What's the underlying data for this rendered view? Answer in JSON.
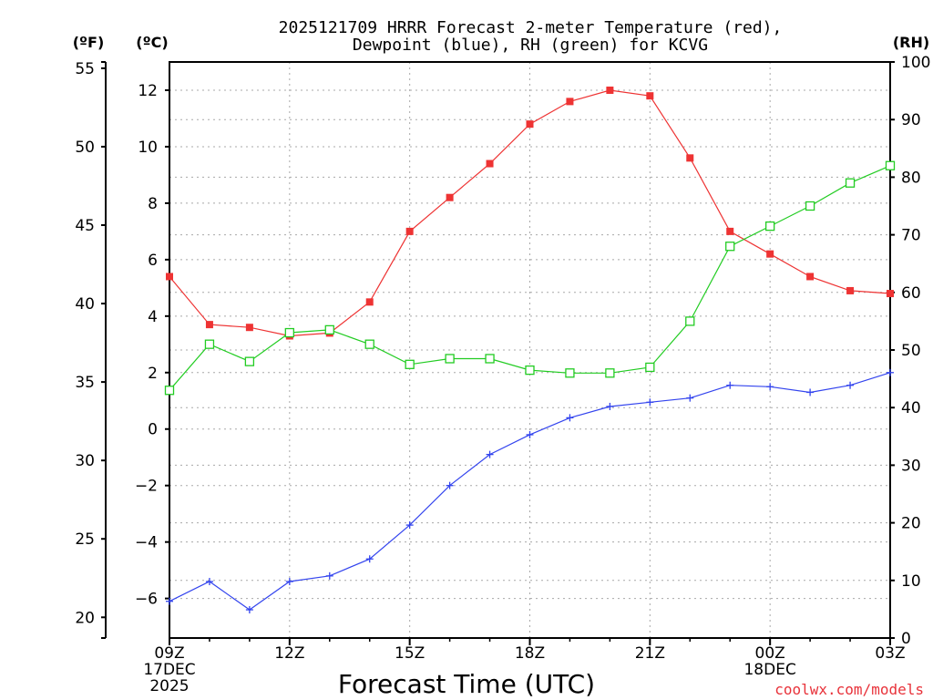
{
  "chart_data": {
    "type": "line",
    "title_line1": "2025121709 HRRR Forecast 2-meter Temperature (red),",
    "title_line2": "Dewpoint (blue), RH (green) for KCVG",
    "xlabel": "Forecast Time (UTC)",
    "unit_f": "(ºF)",
    "unit_c": "(ºC)",
    "unit_rh": "(RH)",
    "credit": "coolwx.com/models",
    "x_hours": [
      0,
      1,
      2,
      3,
      4,
      5,
      6,
      7,
      8,
      9,
      10,
      11,
      12,
      13,
      14,
      15,
      16,
      17,
      18
    ],
    "x_ticks": [
      {
        "hour": 0,
        "lines": [
          "09Z",
          "17DEC",
          "2025"
        ]
      },
      {
        "hour": 3,
        "lines": [
          "12Z"
        ]
      },
      {
        "hour": 6,
        "lines": [
          "15Z"
        ]
      },
      {
        "hour": 9,
        "lines": [
          "18Z"
        ]
      },
      {
        "hour": 12,
        "lines": [
          "21Z"
        ]
      },
      {
        "hour": 15,
        "lines": [
          "00Z",
          "18DEC"
        ]
      },
      {
        "hour": 18,
        "lines": [
          "03Z"
        ]
      }
    ],
    "celsius_axis": {
      "min": -7.4,
      "max": 13.0,
      "ticks": [
        -6,
        -4,
        -2,
        0,
        2,
        4,
        6,
        8,
        10,
        12
      ],
      "tick_labels": [
        "−6",
        "−4",
        "−2",
        "0",
        "2",
        "4",
        "6",
        "8",
        "10",
        "12"
      ]
    },
    "fahrenheit_axis": {
      "ticks": [
        20,
        25,
        30,
        35,
        40,
        45,
        50,
        55
      ],
      "tick_labels": [
        "20",
        "25",
        "30",
        "35",
        "40",
        "45",
        "50",
        "55"
      ]
    },
    "rh_axis": {
      "min": 0,
      "max": 100,
      "ticks": [
        0,
        10,
        20,
        30,
        40,
        50,
        60,
        70,
        80,
        90,
        100
      ],
      "tick_labels": [
        "0",
        "10",
        "20",
        "30",
        "40",
        "50",
        "60",
        "70",
        "80",
        "90",
        "100"
      ]
    },
    "series": [
      {
        "name": "2-meter Temperature",
        "axis": "celsius",
        "color": "#ee3333",
        "marker": "filled-square",
        "values": [
          5.4,
          3.7,
          3.6,
          3.3,
          3.4,
          4.5,
          7.0,
          8.2,
          9.4,
          10.8,
          11.6,
          12.0,
          11.8,
          9.6,
          7.0,
          6.2,
          5.4,
          4.9,
          4.8
        ]
      },
      {
        "name": "Dewpoint",
        "axis": "celsius",
        "color": "#3344ee",
        "marker": "plus",
        "values": [
          -6.1,
          -5.4,
          -6.4,
          -5.4,
          -5.2,
          -4.6,
          -3.4,
          -2.0,
          -0.9,
          -0.2,
          0.4,
          0.8,
          0.95,
          1.1,
          1.55,
          1.5,
          1.3,
          1.55,
          2.0
        ]
      },
      {
        "name": "RH",
        "axis": "rh",
        "color": "#22cc22",
        "marker": "open-square",
        "values": [
          43,
          51,
          48,
          53,
          53.5,
          51,
          47.5,
          48.5,
          48.5,
          46.5,
          46,
          46,
          47,
          55,
          68,
          71.5,
          75,
          79,
          82
        ]
      }
    ]
  }
}
